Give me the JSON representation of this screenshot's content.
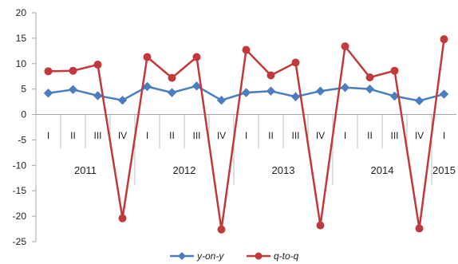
{
  "chart_data": {
    "type": "line",
    "categories": [
      "I",
      "II",
      "III",
      "IV",
      "I",
      "II",
      "III",
      "IV",
      "I",
      "II",
      "III",
      "IV",
      "I",
      "II",
      "III",
      "IV",
      "I"
    ],
    "year_groups": [
      {
        "label": "2011",
        "start": 0,
        "count": 4
      },
      {
        "label": "2012",
        "start": 4,
        "count": 4
      },
      {
        "label": "2013",
        "start": 8,
        "count": 4
      },
      {
        "label": "2014",
        "start": 12,
        "count": 4
      },
      {
        "label": "2015",
        "start": 16,
        "count": 1
      }
    ],
    "series": [
      {
        "name": "y-on-y",
        "color": "#4a7ebf",
        "marker": "diamond",
        "values": [
          4.2,
          4.9,
          3.7,
          2.8,
          5.5,
          4.3,
          5.6,
          2.8,
          4.3,
          4.6,
          3.5,
          4.6,
          5.3,
          5.0,
          3.6,
          2.7,
          4.0
        ]
      },
      {
        "name": "q-to-q",
        "color": "#c0393b",
        "marker": "circle",
        "values": [
          8.5,
          8.6,
          9.8,
          -20.4,
          11.3,
          7.2,
          11.3,
          -22.6,
          12.7,
          7.7,
          10.2,
          -21.8,
          13.4,
          7.3,
          8.6,
          -22.4,
          14.8
        ]
      }
    ],
    "yticks": [
      20,
      15,
      10,
      5,
      0,
      -5,
      -10,
      -15,
      -20,
      -25
    ],
    "ylim": [
      -25,
      20
    ],
    "grid": false,
    "legend_position": "bottom",
    "title": "",
    "xlabel": "",
    "ylabel": ""
  }
}
